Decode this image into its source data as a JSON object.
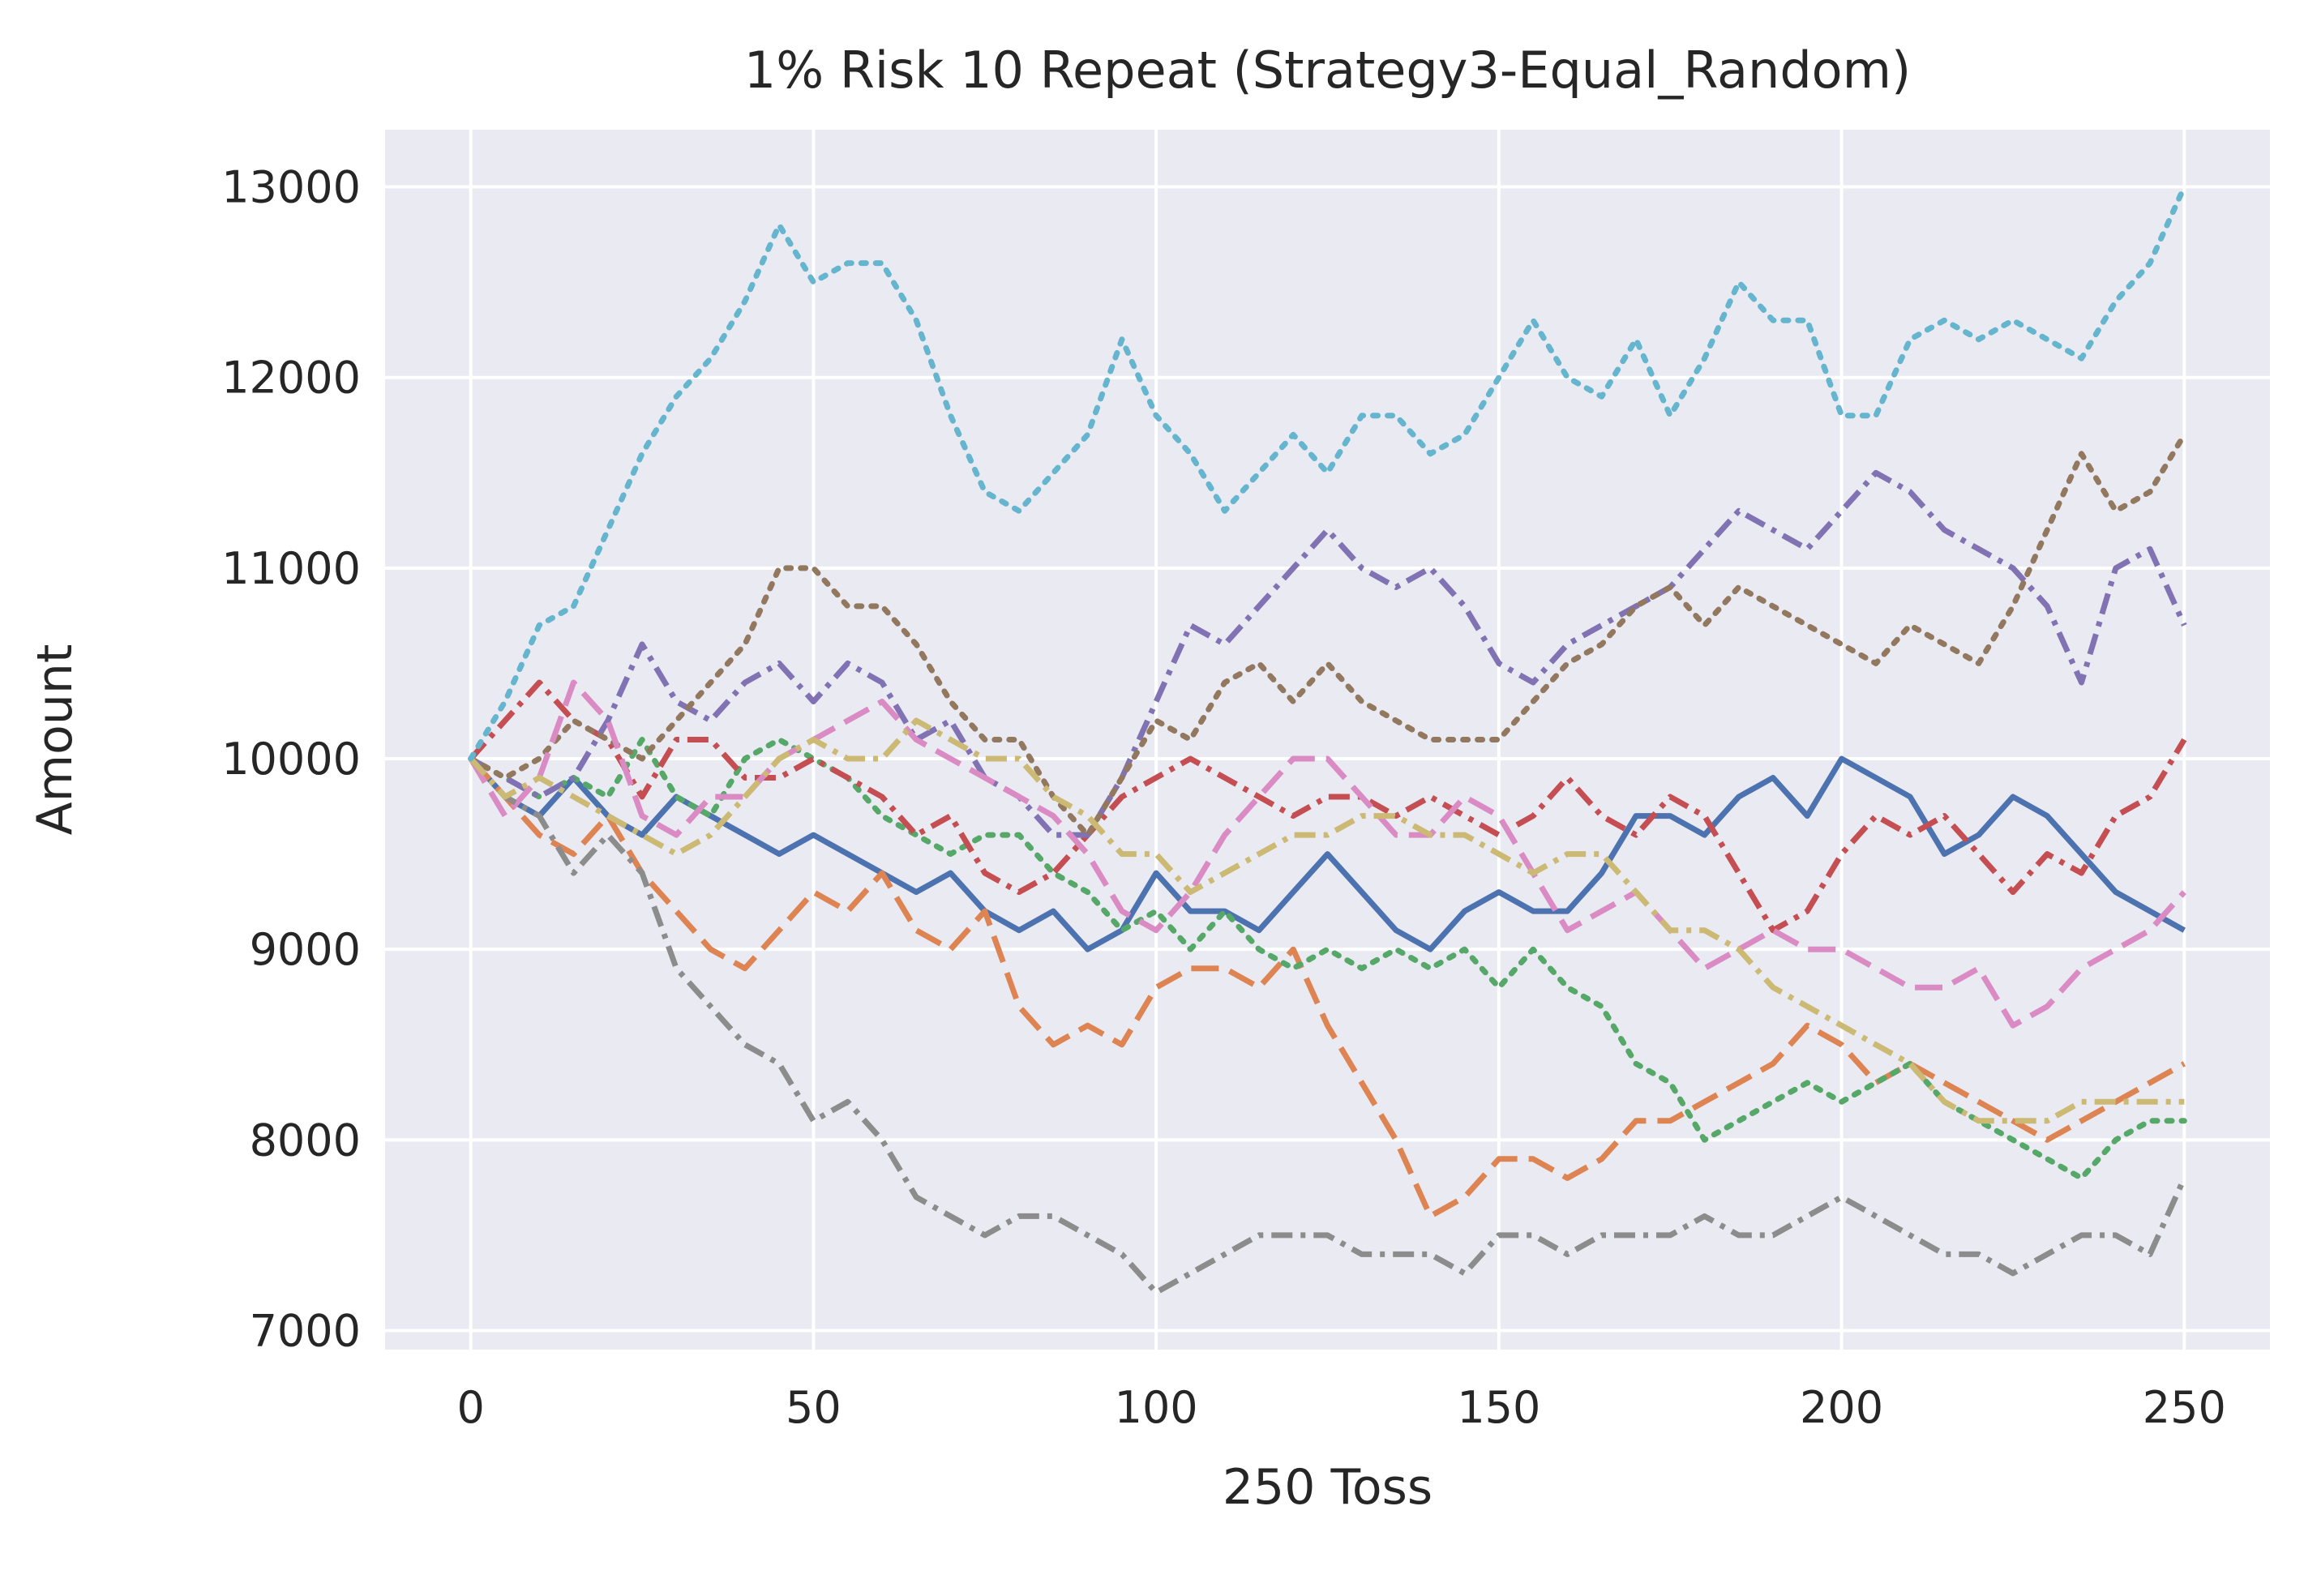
{
  "chart_data": {
    "type": "line",
    "title": "1% Risk 10 Repeat (Strategy3-Equal_Random)",
    "xlabel": "250 Toss",
    "ylabel": "Amount",
    "xlim": [
      -12.5,
      262.5
    ],
    "ylim": [
      6900,
      13300
    ],
    "x_ticks": [
      0,
      50,
      100,
      150,
      200,
      250
    ],
    "y_ticks": [
      7000,
      8000,
      9000,
      10000,
      11000,
      12000,
      13000
    ],
    "grid": true,
    "background": "#eaeaf2",
    "legend": "none",
    "series": [
      {
        "color": "#4c72b0",
        "dash": "solid",
        "x": [
          0,
          5,
          10,
          15,
          20,
          25,
          30,
          35,
          40,
          45,
          50,
          55,
          60,
          65,
          70,
          75,
          80,
          85,
          90,
          95,
          100,
          105,
          110,
          115,
          120,
          125,
          130,
          135,
          140,
          145,
          150,
          155,
          160,
          165,
          170,
          175,
          180,
          185,
          190,
          195,
          200,
          205,
          210,
          215,
          220,
          225,
          230,
          235,
          240,
          245,
          250
        ],
        "y": [
          10000,
          9800,
          9700,
          9900,
          9700,
          9600,
          9800,
          9700,
          9600,
          9500,
          9600,
          9500,
          9400,
          9300,
          9400,
          9200,
          9100,
          9200,
          9000,
          9100,
          9400,
          9200,
          9200,
          9100,
          9300,
          9500,
          9300,
          9100,
          9000,
          9200,
          9300,
          9200,
          9200,
          9400,
          9700,
          9700,
          9600,
          9800,
          9900,
          9700,
          10000,
          9900,
          9800,
          9500,
          9600,
          9800,
          9700,
          9500,
          9300,
          9200,
          9100
        ]
      },
      {
        "color": "#dd8452",
        "dash": "longdash",
        "x": [
          0,
          5,
          10,
          15,
          20,
          25,
          30,
          35,
          40,
          45,
          50,
          55,
          60,
          65,
          70,
          75,
          80,
          85,
          90,
          95,
          100,
          105,
          110,
          115,
          120,
          125,
          130,
          135,
          140,
          145,
          150,
          155,
          160,
          165,
          170,
          175,
          180,
          185,
          190,
          195,
          200,
          205,
          210,
          215,
          220,
          225,
          230,
          235,
          240,
          245,
          250
        ],
        "y": [
          10000,
          9800,
          9600,
          9500,
          9700,
          9400,
          9200,
          9000,
          8900,
          9100,
          9300,
          9200,
          9400,
          9100,
          9000,
          9200,
          8700,
          8500,
          8600,
          8500,
          8800,
          8900,
          8900,
          8800,
          9000,
          8600,
          8300,
          8000,
          7600,
          7700,
          7900,
          7900,
          7800,
          7900,
          8100,
          8100,
          8200,
          8300,
          8400,
          8600,
          8500,
          8300,
          8400,
          8300,
          8200,
          8100,
          8000,
          8100,
          8200,
          8300,
          8400
        ]
      },
      {
        "color": "#55a868",
        "dash": "dotted",
        "x": [
          0,
          5,
          10,
          15,
          20,
          25,
          30,
          35,
          40,
          45,
          50,
          55,
          60,
          65,
          70,
          75,
          80,
          85,
          90,
          95,
          100,
          105,
          110,
          115,
          120,
          125,
          130,
          135,
          140,
          145,
          150,
          155,
          160,
          165,
          170,
          175,
          180,
          185,
          190,
          195,
          200,
          205,
          210,
          215,
          220,
          225,
          230,
          235,
          240,
          245,
          250
        ],
        "y": [
          10000,
          9900,
          9800,
          9900,
          9800,
          10100,
          9800,
          9700,
          10000,
          10100,
          10000,
          9900,
          9700,
          9600,
          9500,
          9600,
          9600,
          9400,
          9300,
          9100,
          9200,
          9000,
          9200,
          9000,
          8900,
          9000,
          8900,
          9000,
          8900,
          9000,
          8800,
          9000,
          8800,
          8700,
          8400,
          8300,
          8000,
          8100,
          8200,
          8300,
          8200,
          8300,
          8400,
          8200,
          8100,
          8000,
          7900,
          7800,
          8000,
          8100,
          8100
        ]
      },
      {
        "color": "#c44e52",
        "dash": "dashdot",
        "x": [
          0,
          5,
          10,
          15,
          20,
          25,
          30,
          35,
          40,
          45,
          50,
          55,
          60,
          65,
          70,
          75,
          80,
          85,
          90,
          95,
          100,
          105,
          110,
          115,
          120,
          125,
          130,
          135,
          140,
          145,
          150,
          155,
          160,
          165,
          170,
          175,
          180,
          185,
          190,
          195,
          200,
          205,
          210,
          215,
          220,
          225,
          230,
          235,
          240,
          245,
          250
        ],
        "y": [
          10000,
          10200,
          10400,
          10200,
          10100,
          9800,
          10100,
          10100,
          9900,
          9900,
          10000,
          9900,
          9800,
          9600,
          9700,
          9400,
          9300,
          9400,
          9600,
          9800,
          9900,
          10000,
          9900,
          9800,
          9700,
          9800,
          9800,
          9700,
          9800,
          9700,
          9600,
          9700,
          9900,
          9700,
          9600,
          9800,
          9700,
          9400,
          9100,
          9200,
          9500,
          9700,
          9600,
          9700,
          9500,
          9300,
          9500,
          9400,
          9700,
          9800,
          10100
        ]
      },
      {
        "color": "#8172b3",
        "dash": "dashdot",
        "x": [
          0,
          5,
          10,
          15,
          20,
          25,
          30,
          35,
          40,
          45,
          50,
          55,
          60,
          65,
          70,
          75,
          80,
          85,
          90,
          95,
          100,
          105,
          110,
          115,
          120,
          125,
          130,
          135,
          140,
          145,
          150,
          155,
          160,
          165,
          170,
          175,
          180,
          185,
          190,
          195,
          200,
          205,
          210,
          215,
          220,
          225,
          230,
          235,
          240,
          245,
          250
        ],
        "y": [
          10000,
          9900,
          9800,
          9900,
          10200,
          10600,
          10300,
          10200,
          10400,
          10500,
          10300,
          10500,
          10400,
          10100,
          10200,
          9900,
          9800,
          9600,
          9600,
          9900,
          10300,
          10700,
          10600,
          10800,
          11000,
          11200,
          11000,
          10900,
          11000,
          10800,
          10500,
          10400,
          10600,
          10700,
          10800,
          10900,
          11100,
          11300,
          11200,
          11100,
          11300,
          11500,
          11400,
          11200,
          11100,
          11000,
          10800,
          10400,
          11000,
          11100,
          10700
        ]
      },
      {
        "color": "#937860",
        "dash": "dotted",
        "x": [
          0,
          5,
          10,
          15,
          20,
          25,
          30,
          35,
          40,
          45,
          50,
          55,
          60,
          65,
          70,
          75,
          80,
          85,
          90,
          95,
          100,
          105,
          110,
          115,
          120,
          125,
          130,
          135,
          140,
          145,
          150,
          155,
          160,
          165,
          170,
          175,
          180,
          185,
          190,
          195,
          200,
          205,
          210,
          215,
          220,
          225,
          230,
          235,
          240,
          245,
          250
        ],
        "y": [
          10000,
          9900,
          10000,
          10200,
          10100,
          10000,
          10200,
          10400,
          10600,
          11000,
          11000,
          10800,
          10800,
          10600,
          10300,
          10100,
          10100,
          9800,
          9600,
          9900,
          10200,
          10100,
          10400,
          10500,
          10300,
          10500,
          10300,
          10200,
          10100,
          10100,
          10100,
          10300,
          10500,
          10600,
          10800,
          10900,
          10700,
          10900,
          10800,
          10700,
          10600,
          10500,
          10700,
          10600,
          10500,
          10800,
          11200,
          11600,
          11300,
          11400,
          11700
        ]
      },
      {
        "color": "#da8bc3",
        "dash": "longdash",
        "x": [
          0,
          5,
          10,
          15,
          20,
          25,
          30,
          35,
          40,
          45,
          50,
          55,
          60,
          65,
          70,
          75,
          80,
          85,
          90,
          95,
          100,
          105,
          110,
          115,
          120,
          125,
          130,
          135,
          140,
          145,
          150,
          155,
          160,
          165,
          170,
          175,
          180,
          185,
          190,
          195,
          200,
          205,
          210,
          215,
          220,
          225,
          230,
          235,
          240,
          245,
          250
        ],
        "y": [
          10000,
          9700,
          9900,
          10400,
          10200,
          9700,
          9600,
          9800,
          9800,
          10000,
          10100,
          10200,
          10300,
          10100,
          10000,
          9900,
          9800,
          9700,
          9500,
          9200,
          9100,
          9300,
          9600,
          9800,
          10000,
          10000,
          9800,
          9600,
          9600,
          9800,
          9700,
          9400,
          9100,
          9200,
          9300,
          9100,
          8900,
          9000,
          9100,
          9000,
          9000,
          8900,
          8800,
          8800,
          8900,
          8600,
          8700,
          8900,
          9000,
          9100,
          9300
        ]
      },
      {
        "color": "#8c8c8c",
        "dash": "dashdot",
        "x": [
          0,
          5,
          10,
          15,
          20,
          25,
          30,
          35,
          40,
          45,
          50,
          55,
          60,
          65,
          70,
          75,
          80,
          85,
          90,
          95,
          100,
          105,
          110,
          115,
          120,
          125,
          130,
          135,
          140,
          145,
          150,
          155,
          160,
          165,
          170,
          175,
          180,
          185,
          190,
          195,
          200,
          205,
          210,
          215,
          220,
          225,
          230,
          235,
          240,
          245,
          250
        ],
        "y": [
          10000,
          9800,
          9700,
          9400,
          9600,
          9400,
          8900,
          8700,
          8500,
          8400,
          8100,
          8200,
          8000,
          7700,
          7600,
          7500,
          7600,
          7600,
          7500,
          7400,
          7200,
          7300,
          7400,
          7500,
          7500,
          7500,
          7400,
          7400,
          7400,
          7300,
          7500,
          7500,
          7400,
          7500,
          7500,
          7500,
          7600,
          7500,
          7500,
          7600,
          7700,
          7600,
          7500,
          7400,
          7400,
          7300,
          7400,
          7500,
          7500,
          7400,
          7800
        ]
      },
      {
        "color": "#ccb974",
        "dash": "dashdot",
        "x": [
          0,
          5,
          10,
          15,
          20,
          25,
          30,
          35,
          40,
          45,
          50,
          55,
          60,
          65,
          70,
          75,
          80,
          85,
          90,
          95,
          100,
          105,
          110,
          115,
          120,
          125,
          130,
          135,
          140,
          145,
          150,
          155,
          160,
          165,
          170,
          175,
          180,
          185,
          190,
          195,
          200,
          205,
          210,
          215,
          220,
          225,
          230,
          235,
          240,
          245,
          250
        ],
        "y": [
          10000,
          9800,
          9900,
          9800,
          9700,
          9600,
          9500,
          9600,
          9800,
          10000,
          10100,
          10000,
          10000,
          10200,
          10100,
          10000,
          10000,
          9800,
          9700,
          9500,
          9500,
          9300,
          9400,
          9500,
          9600,
          9600,
          9700,
          9700,
          9600,
          9600,
          9500,
          9400,
          9500,
          9500,
          9300,
          9100,
          9100,
          9000,
          8800,
          8700,
          8600,
          8500,
          8400,
          8200,
          8100,
          8100,
          8100,
          8200,
          8200,
          8200,
          8200
        ]
      },
      {
        "color": "#64b5cd",
        "dash": "dotted",
        "x": [
          0,
          5,
          10,
          15,
          20,
          25,
          30,
          35,
          40,
          45,
          50,
          55,
          60,
          65,
          70,
          75,
          80,
          85,
          90,
          95,
          100,
          105,
          110,
          115,
          120,
          125,
          130,
          135,
          140,
          145,
          150,
          155,
          160,
          165,
          170,
          175,
          180,
          185,
          190,
          195,
          200,
          205,
          210,
          215,
          220,
          225,
          230,
          235,
          240,
          245,
          250
        ],
        "y": [
          10000,
          10300,
          10700,
          10800,
          11200,
          11600,
          11900,
          12100,
          12400,
          12800,
          12500,
          12600,
          12600,
          12300,
          11800,
          11400,
          11300,
          11500,
          11700,
          12200,
          11800,
          11600,
          11300,
          11500,
          11700,
          11500,
          11800,
          11800,
          11600,
          11700,
          12000,
          12300,
          12000,
          11900,
          12200,
          11800,
          12100,
          12500,
          12300,
          12300,
          11800,
          11800,
          12200,
          12300,
          12200,
          12300,
          12200,
          12100,
          12400,
          12600,
          13000
        ]
      }
    ]
  }
}
